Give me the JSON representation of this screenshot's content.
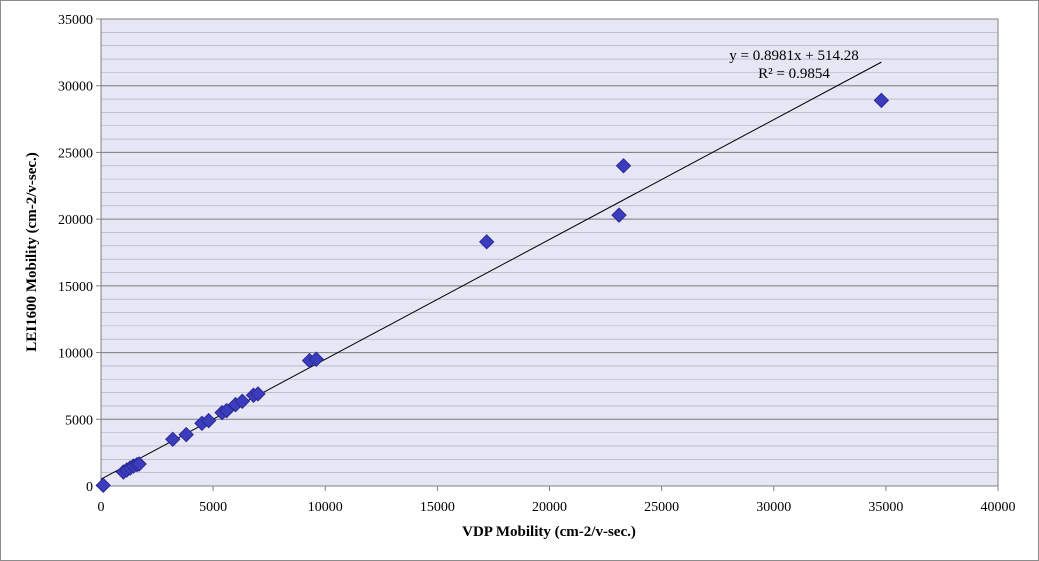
{
  "chart_data": {
    "type": "scatter",
    "title": "",
    "xlabel": "VDP Mobility (cm-2/v-sec.)",
    "ylabel": "LEI1600 Mobility (cm-2/v-sec.)",
    "xlim": [
      0,
      40000
    ],
    "ylim": [
      0,
      35000
    ],
    "x_ticks": [
      0,
      5000,
      10000,
      15000,
      20000,
      25000,
      30000,
      35000,
      40000
    ],
    "y_ticks": [
      0,
      5000,
      10000,
      15000,
      20000,
      25000,
      30000,
      35000
    ],
    "y_minor_step": 1000,
    "grid": true,
    "marker": "diamond",
    "colors": {
      "marker": "#3c3cbe",
      "marker_edge": "#2a2a96",
      "plot_background": "#e6e6f5",
      "gridline": "#7a7a7a",
      "trendline": "#000000"
    },
    "series": [
      {
        "x": [
          100,
          1000,
          1150,
          1300,
          1450,
          1600,
          1700,
          3200,
          3800,
          4500,
          4800,
          5400,
          5600,
          6000,
          6300,
          6800,
          7000,
          9300,
          9600,
          17200,
          23100,
          23300,
          34800
        ],
        "y": [
          50,
          1050,
          1200,
          1350,
          1500,
          1600,
          1650,
          3500,
          3850,
          4700,
          4900,
          5500,
          5650,
          6100,
          6350,
          6800,
          6900,
          9400,
          9500,
          18300,
          20300,
          24000,
          28900
        ]
      }
    ],
    "trendline": {
      "slope": 0.8981,
      "intercept": 514.28,
      "x_range": [
        0,
        34800
      ],
      "equation_label": "y = 0.8981x + 514.28",
      "r2_label": "R² = 0.9854"
    }
  }
}
